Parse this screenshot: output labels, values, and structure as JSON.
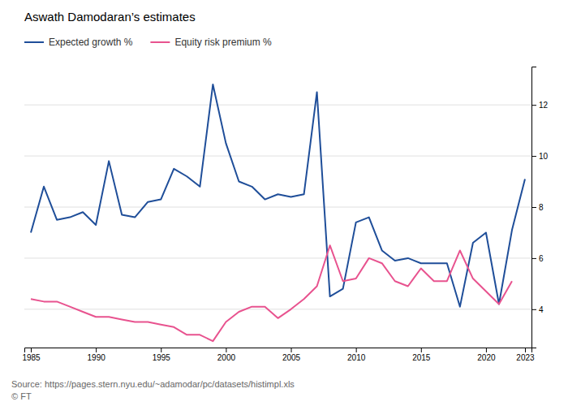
{
  "chart_data": {
    "type": "line",
    "title": "Aswath Damodaran’s estimates",
    "annotations": [
      "Source: https://pages.stern.nyu.edu/~adamodar/pc/datasets/histimpl.xls",
      "© FT"
    ],
    "x": [
      1985,
      1986,
      1987,
      1988,
      1989,
      1990,
      1991,
      1992,
      1993,
      1994,
      1995,
      1996,
      1997,
      1998,
      1999,
      2000,
      2001,
      2002,
      2003,
      2004,
      2005,
      2006,
      2007,
      2008,
      2009,
      2010,
      2011,
      2012,
      2013,
      2014,
      2015,
      2016,
      2017,
      2018,
      2019,
      2020,
      2021,
      2022,
      2023
    ],
    "series": [
      {
        "name": "Expected growth %",
        "color": "#1f4e99",
        "values": [
          7.0,
          8.8,
          7.5,
          7.6,
          7.8,
          7.3,
          9.8,
          7.7,
          7.6,
          8.2,
          8.3,
          9.5,
          9.2,
          8.8,
          12.8,
          10.5,
          9.0,
          8.8,
          8.3,
          8.5,
          8.4,
          8.5,
          12.5,
          4.5,
          4.8,
          7.4,
          7.6,
          6.3,
          5.9,
          6.0,
          5.8,
          5.8,
          5.8,
          4.1,
          6.6,
          7.0,
          4.2,
          7.1,
          9.1
        ]
      },
      {
        "name": "Equity risk premium %",
        "color": "#e8538f",
        "values": [
          4.4,
          4.3,
          4.3,
          4.1,
          3.9,
          3.7,
          3.7,
          3.6,
          3.5,
          3.5,
          3.4,
          3.3,
          3.0,
          3.0,
          2.75,
          3.5,
          3.9,
          4.1,
          4.1,
          3.65,
          4.0,
          4.4,
          4.9,
          6.5,
          5.1,
          5.2,
          6.0,
          5.8,
          5.1,
          4.9,
          5.6,
          5.1,
          5.1,
          6.3,
          5.2,
          4.7,
          4.2,
          5.1,
          null
        ]
      }
    ],
    "xlim": [
      1984.5,
      2023.5
    ],
    "xticks": [
      1985,
      1990,
      1995,
      2000,
      2005,
      2010,
      2015,
      2020,
      2023
    ],
    "ylim": [
      2.5,
      13.5
    ],
    "yticks": [
      4,
      6,
      8,
      10,
      12
    ],
    "grid": true,
    "legend": "top-left"
  }
}
